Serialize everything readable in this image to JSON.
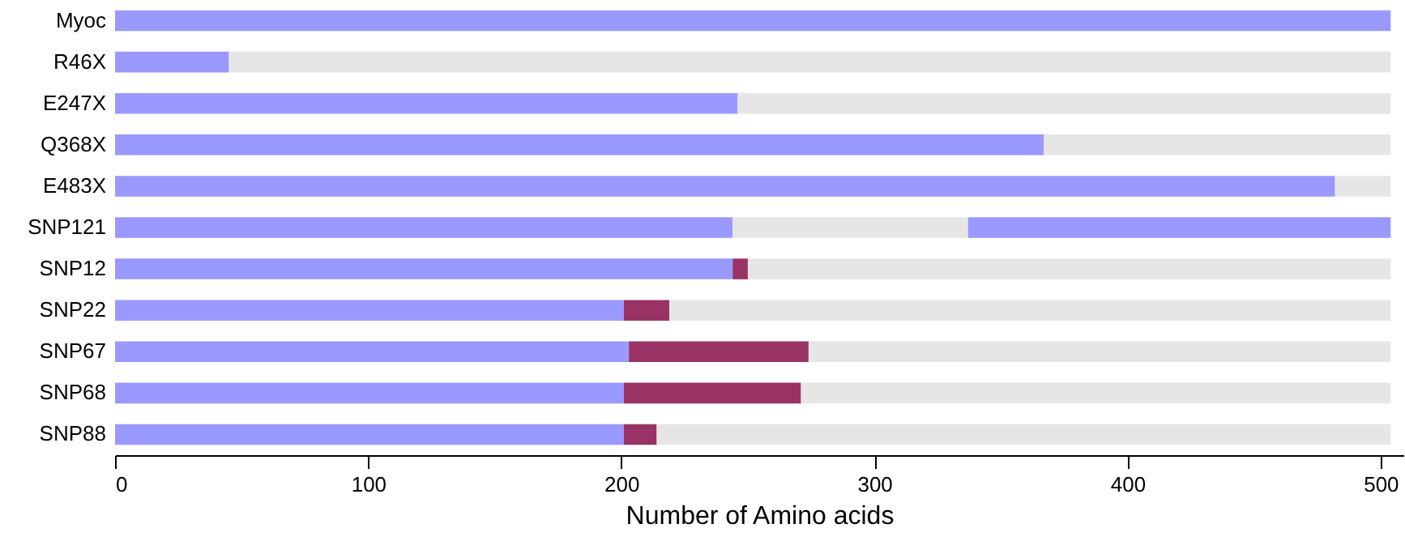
{
  "chart_data": {
    "type": "bar",
    "orientation": "horizontal",
    "stacked": true,
    "xlabel": "Number of Amino acids",
    "categories": [
      "Myoc",
      "R46X",
      "E247X",
      "Q368X",
      "E483X",
      "SNP121",
      "SNP12",
      "SNP22",
      "SNP67",
      "SNP68",
      "SNP88"
    ],
    "series": [
      {
        "color": "#9999ff",
        "values": [
          504,
          45,
          246,
          367,
          482,
          244,
          244,
          201,
          203,
          201,
          201
        ]
      },
      {
        "color": "#993366",
        "values": [
          null,
          null,
          null,
          null,
          null,
          null,
          6,
          18,
          71,
          70,
          13
        ]
      },
      {
        "color": "#e6e6e6",
        "values": [
          null,
          459,
          258,
          137,
          22,
          93,
          254,
          285,
          230,
          233,
          290
        ]
      },
      {
        "color": "#9999ff",
        "values": [
          null,
          null,
          null,
          null,
          null,
          167,
          null,
          null,
          null,
          null,
          null
        ]
      }
    ],
    "xlim": [
      0,
      509
    ],
    "xticks": [
      0,
      100,
      200,
      300,
      400,
      500
    ],
    "grid": false
  }
}
